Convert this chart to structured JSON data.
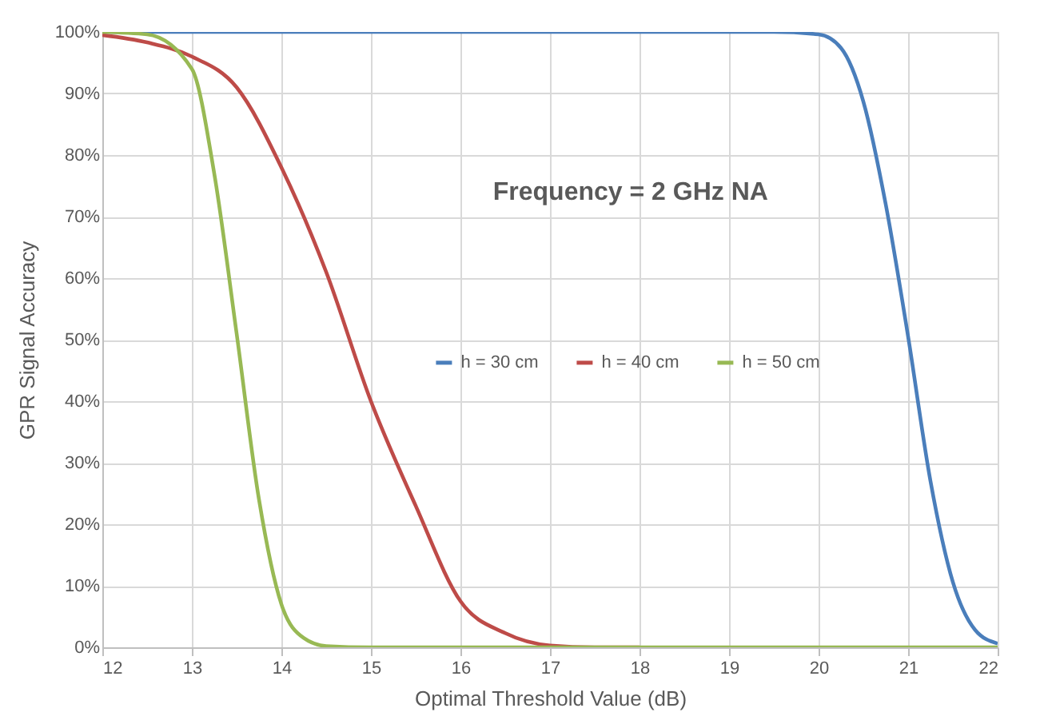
{
  "chart_data": {
    "type": "line",
    "xlabel": "Optimal Threshold Value (dB)",
    "ylabel": "GPR Signal Accuracy",
    "annotations": [
      "Frequency = 2 GHz NA"
    ],
    "xlim": [
      12,
      22
    ],
    "xticks": [
      12,
      13,
      14,
      15,
      16,
      17,
      18,
      19,
      20,
      21,
      22
    ],
    "ylim": [
      0,
      100
    ],
    "yticks": [
      {
        "value": 0,
        "label": "0%"
      },
      {
        "value": 10,
        "label": "10%"
      },
      {
        "value": 20,
        "label": "20%"
      },
      {
        "value": 30,
        "label": "30%"
      },
      {
        "value": 40,
        "label": "40%"
      },
      {
        "value": 50,
        "label": "50%"
      },
      {
        "value": 60,
        "label": "60%"
      },
      {
        "value": 70,
        "label": "70%"
      },
      {
        "value": 80,
        "label": "80%"
      },
      {
        "value": 90,
        "label": "90%"
      },
      {
        "value": 100,
        "label": "100%"
      }
    ],
    "grid": true,
    "legend": "center",
    "marker": "none",
    "line_style": "solid",
    "series": [
      {
        "name": "h = 30 cm",
        "color": "#4a7ebb",
        "x": [
          12,
          14,
          16,
          18,
          19.5,
          20,
          20.25,
          20.5,
          20.75,
          21,
          21.25,
          21.5,
          21.75,
          22
        ],
        "values": [
          100,
          100,
          100,
          100,
          100,
          99.6,
          97.4,
          88.7,
          72,
          50.5,
          27,
          10.6,
          2.8,
          0.6
        ]
      },
      {
        "name": "h = 40 cm",
        "color": "#be4b48",
        "x": [
          12,
          12.5,
          13,
          13.5,
          14,
          14.5,
          15,
          15.5,
          16,
          16.5,
          17,
          17.5,
          18
        ],
        "values": [
          99.5,
          98.3,
          96,
          91,
          78,
          61,
          40,
          23,
          7.5,
          2.3,
          0.3,
          0,
          0
        ]
      },
      {
        "name": "h = 50 cm",
        "color": "#98b954",
        "x": [
          12,
          12.5,
          13,
          13.25,
          13.5,
          13.75,
          14,
          14.25,
          14.5,
          15,
          16,
          18,
          20,
          22
        ],
        "values": [
          100,
          99.6,
          94,
          77,
          51,
          24,
          7,
          1.5,
          0.2,
          0,
          0,
          0,
          0,
          0
        ]
      }
    ]
  }
}
